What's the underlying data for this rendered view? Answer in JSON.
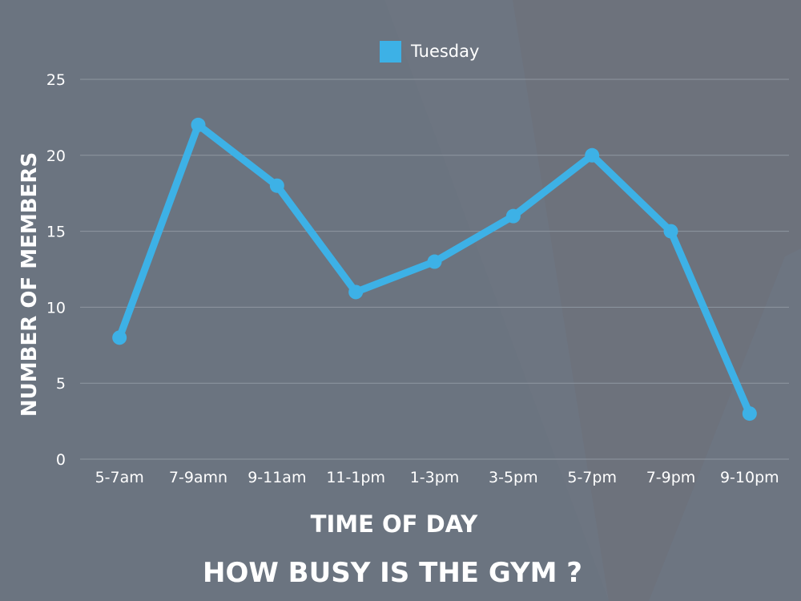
{
  "chart_data": {
    "type": "line",
    "title": "HOW BUSY IS THE GYM ?",
    "xlabel": "TIME OF DAY",
    "ylabel": "NUMBER OF MEMBERS",
    "categories": [
      "5-7am",
      "7-9amn",
      "9-11am",
      "11-1pm",
      "1-3pm",
      "3-5pm",
      "5-7pm",
      "7-9pm",
      "9-10pm"
    ],
    "series": [
      {
        "name": "Tuesday",
        "values": [
          8,
          22,
          18,
          11,
          13,
          16,
          20,
          15,
          3
        ]
      }
    ],
    "ylim": [
      0,
      25
    ],
    "yticks": [
      "0",
      "5",
      "10",
      "15",
      "20",
      "25"
    ],
    "grid": true,
    "legend_position": "top-center",
    "colors": {
      "background": "#6b7480",
      "series": "#3db1e6",
      "grid": "#8f97a1",
      "text": "#ffffff"
    }
  }
}
